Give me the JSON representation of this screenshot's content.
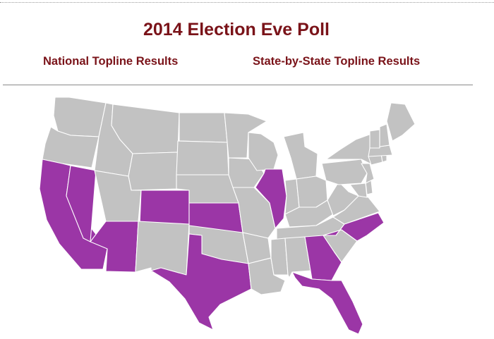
{
  "title": "2014 Election Eve Poll",
  "links": {
    "national": "National Topline Results",
    "state_by_state": "State-by-State Topline Results"
  },
  "colors": {
    "title": "#7a1319",
    "highlighted": "#9b36a6",
    "default": "#c2c2c2",
    "border": "#ffffff"
  },
  "map": {
    "highlighted_states": [
      "CA",
      "NV",
      "AZ",
      "CO",
      "KS",
      "TX",
      "IL",
      "NC",
      "GA",
      "FL"
    ]
  }
}
